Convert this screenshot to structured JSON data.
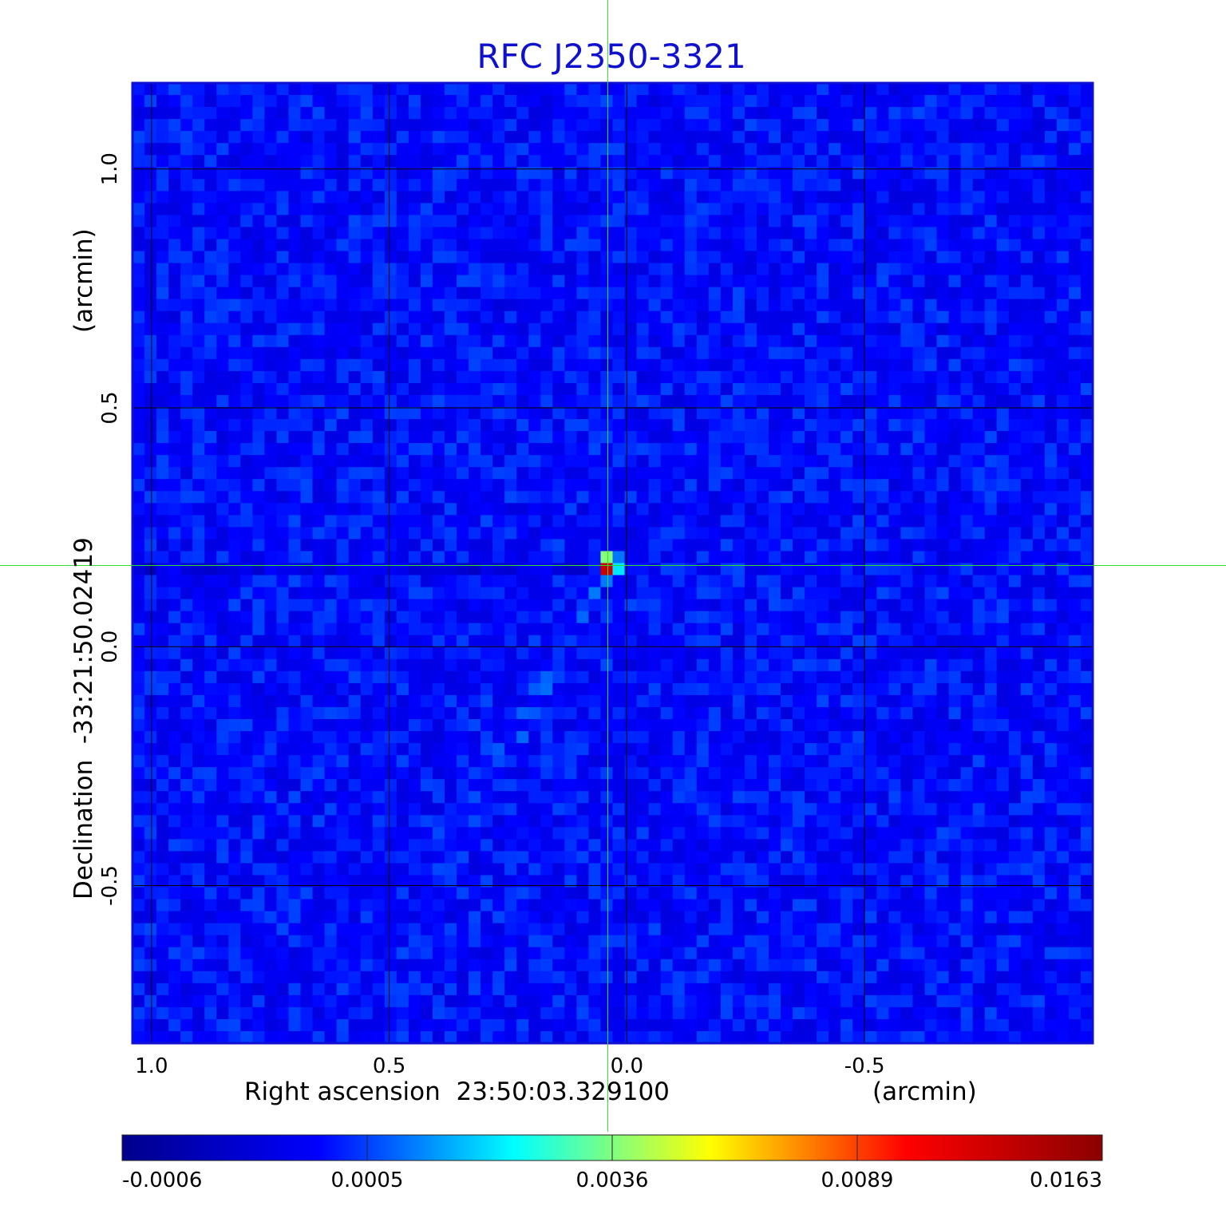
{
  "chart_data": {
    "type": "heatmap",
    "title": "RFC J2350-3321",
    "xlabel": "Right ascension  23:50:03.329100",
    "xunit": "(arcmin)",
    "ylabel": "Declination  -33:21:50.02419",
    "yunit": "(arcmin)",
    "x_ticks": [
      1.0,
      0.5,
      0.0,
      -0.5
    ],
    "x_tick_labels": [
      "1.0",
      "0.5",
      "0.0",
      "-0.5"
    ],
    "y_ticks": [
      1.0,
      0.5,
      0.0,
      -0.5
    ],
    "y_tick_labels": [
      "1.0",
      "0.5",
      "0.0",
      "-0.5"
    ],
    "xlim": [
      1.04,
      -0.98
    ],
    "ylim": [
      -0.83,
      1.18
    ],
    "grid": true,
    "crosshair": {
      "x": 0.04,
      "y": 0.17
    },
    "peak": {
      "x": 0.04,
      "y": 0.17,
      "value": 0.0163
    },
    "colormap": "jet",
    "colorbar": {
      "tick_labels": [
        "-0.0006",
        "0.0005",
        "0.0036",
        "0.0089",
        "0.0163"
      ],
      "values": [
        -0.0006,
        0.0005,
        0.0036,
        0.0089,
        0.0163
      ],
      "colors": [
        "#00008b",
        "#0000ff",
        "#00ffff",
        "#ffff00",
        "#ff0000",
        "#8b0000"
      ]
    }
  },
  "colors": {
    "title": "#1010d0",
    "frame": "#1010d0",
    "crosshair": "#33dd33",
    "grid": "#000000"
  }
}
